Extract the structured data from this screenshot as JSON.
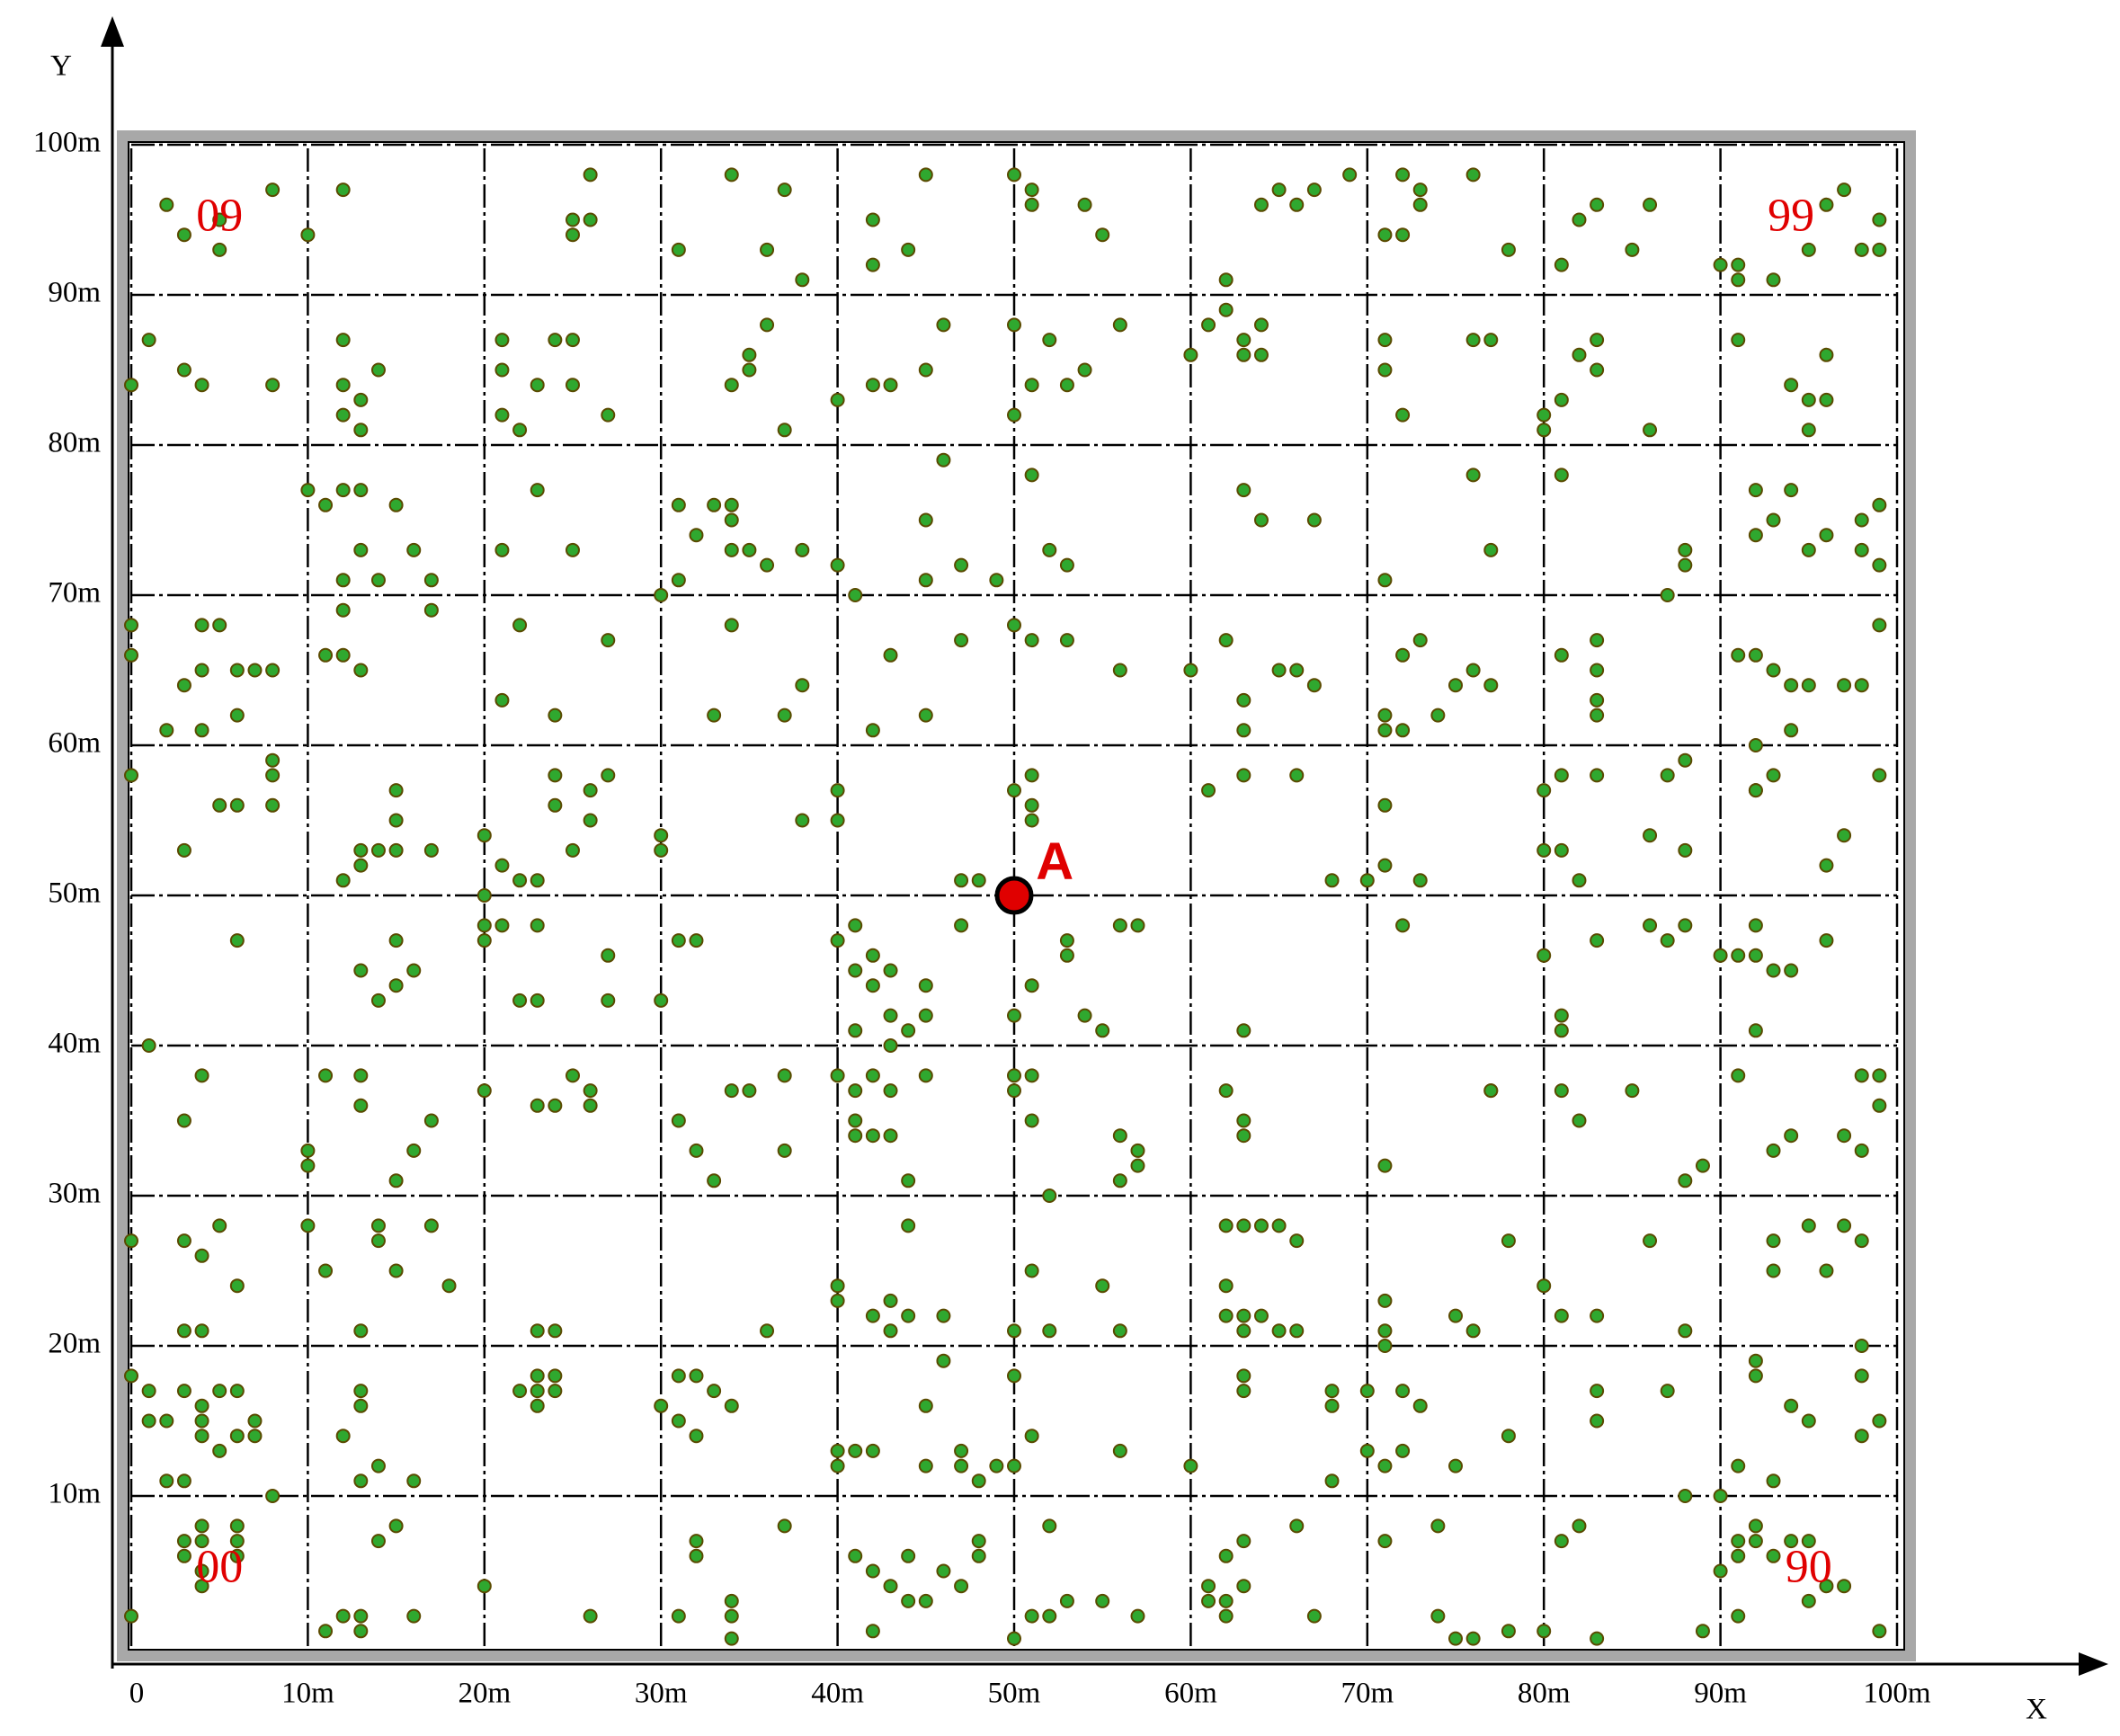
{
  "chart_data": {
    "type": "scatter",
    "xlabel": "X",
    "ylabel": "Y",
    "xlim": [
      0,
      100
    ],
    "ylim": [
      0,
      100
    ],
    "xticks": [
      0,
      {
        "value": 10,
        "label": "10m"
      },
      {
        "value": 20,
        "label": "20m"
      },
      {
        "value": 30,
        "label": "30m"
      },
      {
        "value": 40,
        "label": "40m"
      },
      {
        "value": 50,
        "label": "50m"
      },
      {
        "value": 60,
        "label": "60m"
      },
      {
        "value": 70,
        "label": "70m"
      },
      {
        "value": 80,
        "label": "80m"
      },
      {
        "value": 90,
        "label": "90m"
      },
      {
        "value": 100,
        "label": "100m"
      }
    ],
    "yticks": [
      {
        "value": 10,
        "label": "10m"
      },
      {
        "value": 20,
        "label": "20m"
      },
      {
        "value": 30,
        "label": "30m"
      },
      {
        "value": 40,
        "label": "40m"
      },
      {
        "value": 50,
        "label": "50m"
      },
      {
        "value": 60,
        "label": "60m"
      },
      {
        "value": 70,
        "label": "70m"
      },
      {
        "value": 80,
        "label": "80m"
      },
      {
        "value": 90,
        "label": "90m"
      },
      {
        "value": 100,
        "label": "100m"
      }
    ],
    "grid": true,
    "series": [
      {
        "color": "#2fa82f",
        "x": [
          2,
          3,
          5,
          5,
          8,
          10,
          12,
          25,
          25,
          26,
          26,
          31,
          34,
          36,
          37,
          38,
          42,
          42,
          44,
          45,
          50,
          51,
          51,
          54,
          55,
          62,
          64,
          65,
          66,
          67,
          69,
          71,
          72,
          72,
          73,
          73,
          76,
          78,
          81,
          82,
          83,
          85,
          86,
          90,
          91,
          91,
          93,
          95,
          96,
          97,
          98,
          99,
          99,
          0,
          1,
          3,
          4,
          8,
          12,
          12,
          12,
          13,
          13,
          14,
          21,
          21,
          21,
          22,
          23,
          24,
          25,
          25,
          27,
          34,
          35,
          35,
          36,
          37,
          40,
          42,
          43,
          45,
          46,
          50,
          50,
          51,
          52,
          53,
          54,
          56,
          60,
          61,
          62,
          63,
          63,
          64,
          64,
          71,
          71,
          72,
          76,
          77,
          80,
          80,
          81,
          82,
          83,
          83,
          86,
          91,
          94,
          95,
          96,
          96,
          95,
          10,
          11,
          12,
          12,
          13,
          13,
          14,
          15,
          16,
          17,
          21,
          23,
          25,
          30,
          31,
          31,
          32,
          33,
          34,
          34,
          34,
          35,
          36,
          38,
          40,
          41,
          45,
          45,
          46,
          47,
          49,
          51,
          52,
          53,
          63,
          64,
          67,
          71,
          76,
          77,
          81,
          87,
          88,
          88,
          92,
          92,
          93,
          94,
          95,
          96,
          98,
          98,
          99,
          99,
          0,
          0,
          2,
          3,
          4,
          4,
          4,
          5,
          6,
          6,
          7,
          8,
          11,
          12,
          12,
          13,
          17,
          21,
          22,
          24,
          27,
          33,
          34,
          37,
          38,
          42,
          43,
          45,
          47,
          50,
          51,
          53,
          56,
          60,
          62,
          63,
          63,
          65,
          66,
          67,
          71,
          71,
          72,
          72,
          73,
          74,
          75,
          76,
          77,
          81,
          83,
          83,
          83,
          83,
          91,
          92,
          92,
          93,
          94,
          94,
          95,
          97,
          98,
          99,
          0,
          3,
          5,
          6,
          8,
          8,
          8,
          12,
          13,
          13,
          14,
          15,
          15,
          15,
          17,
          20,
          20,
          21,
          22,
          23,
          24,
          24,
          25,
          26,
          26,
          27,
          30,
          30,
          38,
          40,
          40,
          47,
          48,
          50,
          51,
          51,
          51,
          61,
          63,
          66,
          68,
          70,
          71,
          71,
          73,
          80,
          80,
          81,
          81,
          82,
          83,
          86,
          87,
          88,
          88,
          92,
          92,
          93,
          96,
          97,
          99,
          1,
          6,
          13,
          14,
          15,
          15,
          16,
          20,
          20,
          21,
          22,
          23,
          23,
          27,
          27,
          30,
          31,
          32,
          40,
          41,
          41,
          41,
          42,
          42,
          43,
          43,
          43,
          44,
          45,
          45,
          47,
          50,
          51,
          53,
          53,
          54,
          55,
          56,
          57,
          63,
          72,
          80,
          81,
          81,
          83,
          86,
          87,
          88,
          90,
          91,
          92,
          92,
          92,
          93,
          94,
          96,
          3,
          4,
          10,
          10,
          11,
          13,
          13,
          15,
          16,
          17,
          20,
          23,
          24,
          25,
          26,
          26,
          31,
          32,
          33,
          34,
          35,
          37,
          37,
          40,
          41,
          41,
          41,
          42,
          42,
          43,
          43,
          44,
          45,
          50,
          50,
          51,
          51,
          52,
          56,
          56,
          57,
          57,
          62,
          63,
          63,
          71,
          77,
          77,
          81,
          82,
          85,
          88,
          89,
          91,
          93,
          94,
          97,
          98,
          99,
          99,
          98,
          0,
          3,
          3,
          4,
          4,
          5,
          6,
          10,
          11,
          13,
          14,
          14,
          15,
          17,
          18,
          23,
          24,
          36,
          40,
          40,
          42,
          43,
          43,
          44,
          44,
          46,
          50,
          51,
          52,
          55,
          56,
          62,
          62,
          62,
          63,
          63,
          63,
          64,
          64,
          65,
          65,
          66,
          66,
          71,
          71,
          71,
          75,
          76,
          78,
          80,
          81,
          83,
          86,
          88,
          93,
          93,
          95,
          96,
          97,
          98,
          98,
          0,
          1,
          1,
          2,
          2,
          3,
          3,
          4,
          4,
          4,
          5,
          5,
          6,
          6,
          7,
          7,
          8,
          12,
          13,
          13,
          13,
          14,
          16,
          22,
          23,
          23,
          23,
          24,
          24,
          30,
          31,
          31,
          32,
          32,
          33,
          34,
          40,
          40,
          41,
          42,
          45,
          45,
          46,
          47,
          47,
          48,
          49,
          50,
          50,
          51,
          56,
          60,
          63,
          63,
          68,
          68,
          68,
          70,
          70,
          71,
          72,
          72,
          73,
          75,
          78,
          83,
          83,
          87,
          88,
          90,
          91,
          92,
          92,
          93,
          94,
          95,
          98,
          98,
          99,
          0,
          3,
          3,
          4,
          4,
          4,
          4,
          6,
          6,
          6,
          11,
          12,
          13,
          13,
          14,
          15,
          16,
          20,
          26,
          31,
          32,
          32,
          34,
          34,
          34,
          37,
          41,
          42,
          42,
          43,
          44,
          44,
          45,
          46,
          47,
          48,
          48,
          50,
          51,
          52,
          52,
          53,
          55,
          57,
          61,
          61,
          62,
          62,
          62,
          63,
          63,
          66,
          67,
          71,
          74,
          74,
          75,
          76,
          78,
          80,
          81,
          82,
          83,
          89,
          90,
          91,
          91,
          91,
          92,
          92,
          93,
          94,
          95,
          95,
          96,
          97,
          99
        ],
        "values": [
          96,
          94,
          93,
          95,
          97,
          94,
          97,
          95,
          94,
          95,
          98,
          93,
          98,
          93,
          97,
          91,
          92,
          95,
          93,
          98,
          98,
          97,
          96,
          96,
          94,
          91,
          96,
          97,
          96,
          97,
          98,
          94,
          94,
          98,
          97,
          96,
          98,
          93,
          92,
          95,
          96,
          93,
          96,
          92,
          92,
          91,
          91,
          93,
          96,
          97,
          93,
          95,
          93,
          84,
          87,
          85,
          84,
          84,
          84,
          82,
          87,
          83,
          81,
          85,
          87,
          85,
          82,
          81,
          84,
          87,
          87,
          84,
          82,
          84,
          85,
          86,
          88,
          81,
          83,
          84,
          84,
          85,
          88,
          88,
          82,
          84,
          87,
          84,
          85,
          88,
          86,
          88,
          89,
          87,
          86,
          88,
          86,
          87,
          85,
          82,
          87,
          87,
          81,
          82,
          83,
          86,
          87,
          85,
          81,
          87,
          84,
          83,
          83,
          86,
          81,
          77,
          76,
          77,
          71,
          73,
          77,
          71,
          76,
          73,
          71,
          73,
          77,
          73,
          70,
          71,
          76,
          74,
          76,
          76,
          75,
          73,
          73,
          72,
          73,
          72,
          70,
          75,
          71,
          79,
          72,
          71,
          78,
          73,
          72,
          77,
          75,
          75,
          71,
          78,
          73,
          78,
          70,
          72,
          73,
          74,
          77,
          75,
          77,
          73,
          74,
          73,
          75,
          72,
          76,
          68,
          66,
          61,
          64,
          65,
          68,
          61,
          68,
          65,
          62,
          65,
          65,
          66,
          66,
          69,
          65,
          69,
          63,
          68,
          62,
          67,
          62,
          68,
          62,
          64,
          61,
          66,
          62,
          67,
          68,
          67,
          67,
          65,
          65,
          67,
          63,
          61,
          65,
          65,
          64,
          62,
          61,
          61,
          66,
          67,
          62,
          64,
          65,
          64,
          66,
          67,
          65,
          63,
          62,
          66,
          60,
          66,
          65,
          64,
          61,
          64,
          64,
          64,
          68,
          58,
          53,
          56,
          56,
          58,
          59,
          56,
          51,
          52,
          53,
          53,
          53,
          55,
          57,
          53,
          54,
          50,
          52,
          51,
          51,
          56,
          58,
          53,
          55,
          57,
          58,
          54,
          53,
          55,
          55,
          57,
          51,
          51,
          57,
          58,
          56,
          55,
          57,
          58,
          58,
          51,
          51,
          52,
          56,
          51,
          57,
          53,
          53,
          58,
          51,
          58,
          54,
          58,
          59,
          53,
          57,
          57,
          58,
          52,
          54,
          58,
          40,
          47,
          45,
          43,
          47,
          44,
          45,
          47,
          48,
          48,
          43,
          43,
          48,
          46,
          43,
          43,
          47,
          47,
          47,
          48,
          45,
          41,
          44,
          46,
          45,
          42,
          40,
          41,
          44,
          42,
          48,
          42,
          44,
          47,
          46,
          42,
          41,
          48,
          48,
          41,
          48,
          46,
          42,
          41,
          47,
          48,
          47,
          48,
          46,
          46,
          48,
          46,
          41,
          45,
          45,
          47,
          35,
          38,
          33,
          32,
          38,
          38,
          36,
          31,
          33,
          35,
          37,
          36,
          36,
          38,
          37,
          36,
          35,
          33,
          31,
          37,
          37,
          33,
          38,
          38,
          37,
          35,
          34,
          38,
          34,
          34,
          37,
          31,
          38,
          38,
          37,
          38,
          35,
          30,
          31,
          34,
          33,
          32,
          37,
          35,
          34,
          32,
          37,
          37,
          37,
          35,
          37,
          31,
          32,
          38,
          33,
          34,
          34,
          38,
          38,
          36,
          33,
          27,
          27,
          21,
          26,
          21,
          28,
          24,
          28,
          25,
          21,
          28,
          27,
          25,
          28,
          24,
          21,
          21,
          21,
          24,
          23,
          22,
          21,
          23,
          28,
          22,
          22,
          21,
          25,
          21,
          24,
          21,
          28,
          24,
          22,
          22,
          21,
          28,
          22,
          28,
          21,
          28,
          21,
          27,
          23,
          21,
          20,
          22,
          21,
          27,
          24,
          22,
          22,
          27,
          21,
          27,
          25,
          28,
          25,
          28,
          27,
          20,
          18,
          17,
          15,
          15,
          11,
          17,
          11,
          16,
          14,
          15,
          13,
          17,
          14,
          17,
          14,
          15,
          10,
          14,
          11,
          17,
          16,
          12,
          11,
          17,
          18,
          17,
          16,
          18,
          17,
          16,
          15,
          18,
          14,
          18,
          17,
          16,
          13,
          12,
          13,
          13,
          16,
          12,
          19,
          13,
          12,
          11,
          12,
          12,
          18,
          14,
          13,
          12,
          18,
          17,
          17,
          16,
          11,
          17,
          13,
          12,
          13,
          17,
          16,
          12,
          14,
          17,
          15,
          17,
          10,
          10,
          12,
          18,
          19,
          11,
          16,
          15,
          18,
          14,
          15,
          2,
          7,
          6,
          8,
          7,
          5,
          4,
          8,
          7,
          6,
          1,
          2,
          2,
          1,
          7,
          8,
          2,
          4,
          2,
          2,
          7,
          6,
          3,
          0.5,
          2,
          8,
          6,
          5,
          1,
          4,
          6,
          3,
          3,
          5,
          4,
          7,
          6,
          0.5,
          2,
          2,
          8,
          3,
          3,
          2,
          4,
          3,
          6,
          2,
          3,
          7,
          4,
          8,
          2,
          7,
          8,
          2,
          0.5,
          0.5,
          1,
          1,
          7,
          8,
          0.5,
          1,
          5,
          6,
          7,
          2,
          8,
          7,
          6,
          7,
          3,
          7,
          4,
          4,
          1
        ]
      },
      {
        "color": "#e00000",
        "x": [
          50
        ],
        "values": [
          50
        ]
      }
    ],
    "annotations": [
      {
        "text": "00",
        "x": 5,
        "y": 5
      },
      {
        "text": "09",
        "x": 5,
        "y": 95
      },
      {
        "text": "90",
        "x": 95,
        "y": 5
      },
      {
        "text": "99",
        "x": 94,
        "y": 95
      },
      {
        "text": "A",
        "x": 52.3,
        "y": 52
      }
    ]
  }
}
